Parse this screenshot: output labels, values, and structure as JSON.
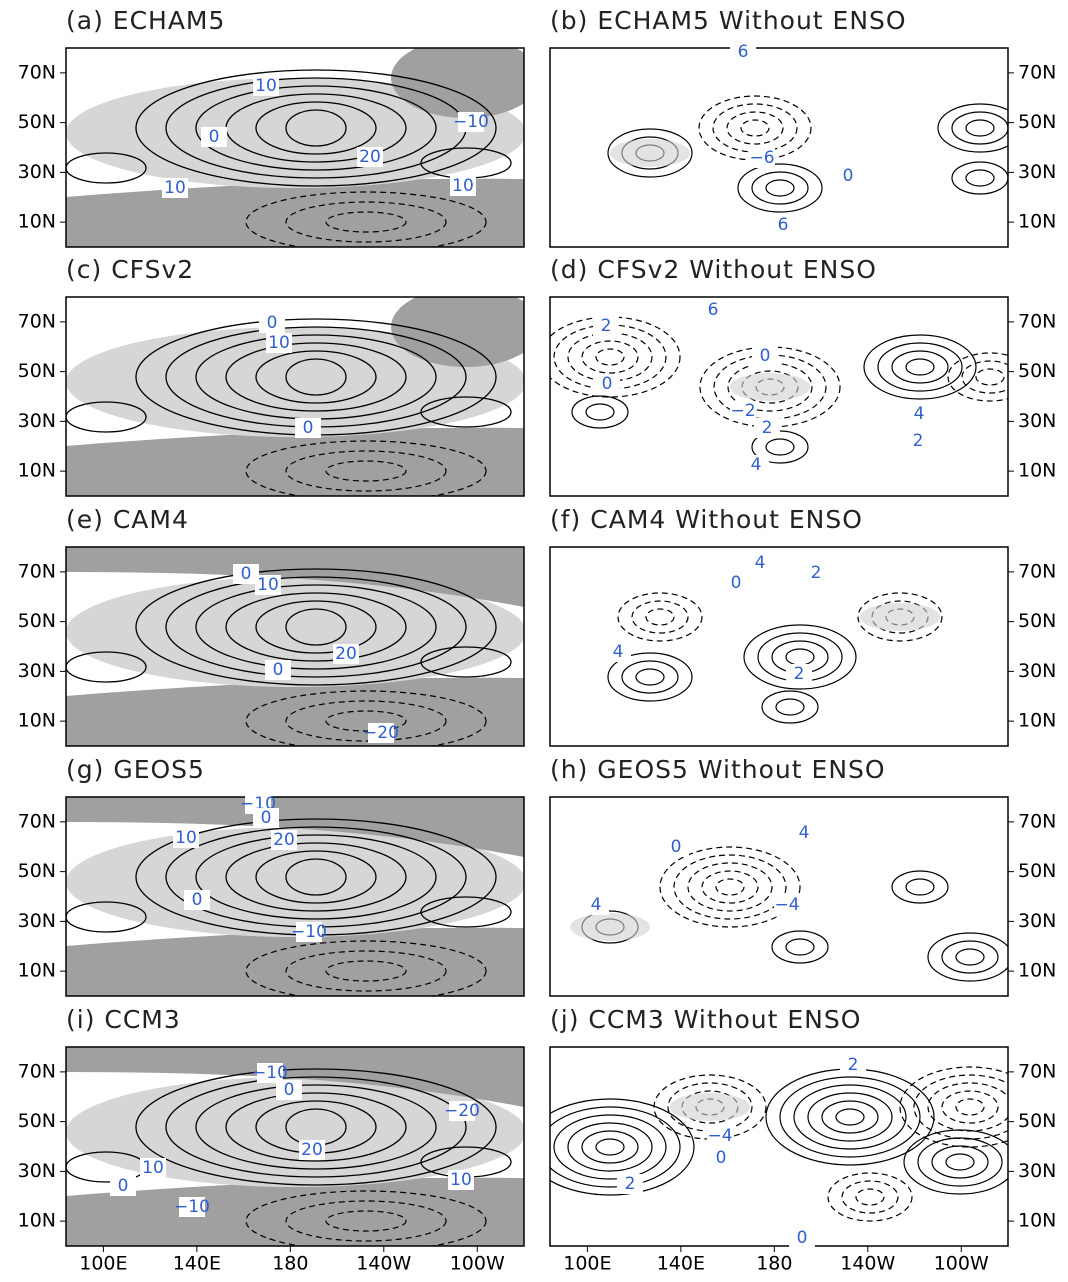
{
  "xlim": [
    84,
    280
  ],
  "ylim": [
    0,
    80
  ],
  "lat_ticks": [
    {
      "value": 10,
      "label": "10N"
    },
    {
      "value": 30,
      "label": "30N"
    },
    {
      "value": 50,
      "label": "50N"
    },
    {
      "value": 70,
      "label": "70N"
    }
  ],
  "lon_ticks": [
    {
      "value": 100,
      "label": "100E"
    },
    {
      "value": 140,
      "label": "140E"
    },
    {
      "value": 180,
      "label": "180"
    },
    {
      "value": 220,
      "label": "140W"
    },
    {
      "value": 260,
      "label": "100W"
    }
  ],
  "panels": [
    {
      "title": "(a) ECHAM5",
      "contour_labels": [
        "10",
        "−10",
        "0",
        "20",
        "10",
        "10"
      ]
    },
    {
      "title": "(b) ECHAM5 Without ENSO",
      "contour_labels": [
        "6",
        "−6",
        "0",
        "6"
      ]
    },
    {
      "title": "(c) CFSv2",
      "contour_labels": [
        "0",
        "10",
        "0"
      ]
    },
    {
      "title": "(d) CFSv2 Without ENSO",
      "contour_labels": [
        "6",
        "2",
        "0",
        "0",
        "−2",
        "4",
        "2",
        "2",
        "4"
      ]
    },
    {
      "title": "(e) CAM4",
      "contour_labels": [
        "0",
        "10",
        "20",
        "0",
        "−20"
      ]
    },
    {
      "title": "(f) CAM4 Without ENSO",
      "contour_labels": [
        "4",
        "2",
        "0",
        "4",
        "2"
      ]
    },
    {
      "title": "(g) GEOS5",
      "contour_labels": [
        "−10",
        "0",
        "20",
        "10",
        "0",
        "−10"
      ]
    },
    {
      "title": "(h) GEOS5 Without ENSO",
      "contour_labels": [
        "4",
        "0",
        "−4",
        "4"
      ]
    },
    {
      "title": "(i) CCM3",
      "contour_labels": [
        "−10",
        "0",
        "−20",
        "20",
        "10",
        "0",
        "10",
        "−10"
      ]
    },
    {
      "title": "(j) CCM3 Without ENSO",
      "contour_labels": [
        "2",
        "−4",
        "0",
        "2",
        "0"
      ]
    }
  ]
}
